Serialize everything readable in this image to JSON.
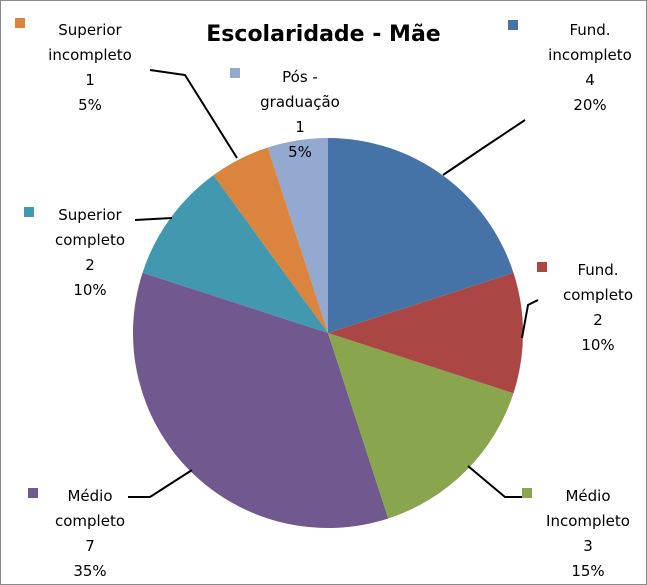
{
  "chart_data": {
    "type": "pie",
    "title": "Escolaridade - Mãe",
    "categories": [
      "Fund. incompleto",
      "Fund. completo",
      "Médio Incompleto",
      "Médio completo",
      "Superior completo",
      "Superior incompleto",
      "Pós - graduação"
    ],
    "values": [
      4,
      2,
      3,
      7,
      2,
      1,
      1
    ],
    "percent_labels": [
      "20%",
      "10%",
      "15%",
      "35%",
      "10%",
      "5%",
      "5%"
    ],
    "colors": [
      "#4572a7",
      "#aa4643",
      "#89a54e",
      "#71588f",
      "#4198af",
      "#db843d",
      "#93a9cf"
    ]
  }
}
